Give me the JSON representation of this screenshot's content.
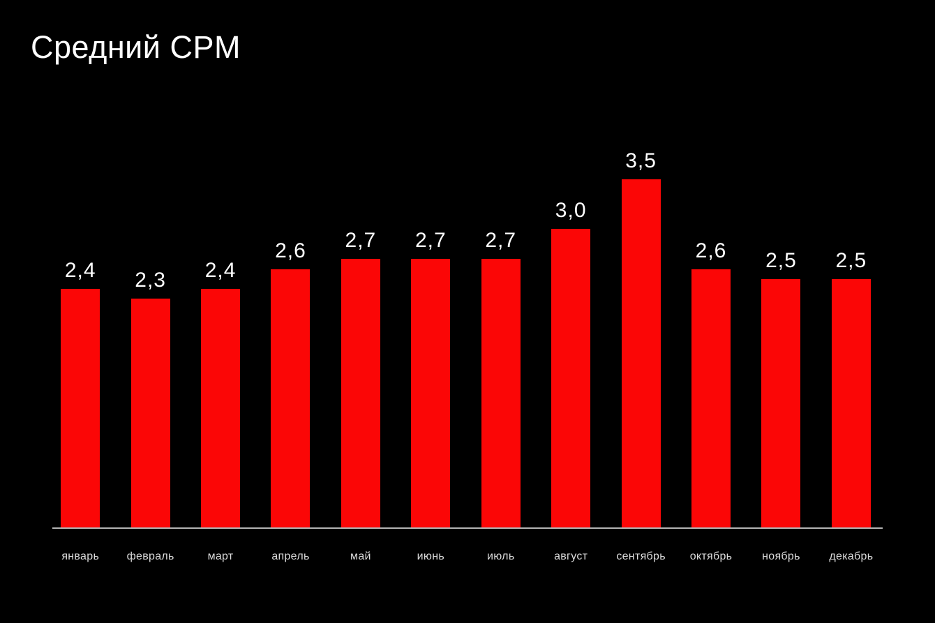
{
  "title": "Средний CPM",
  "colors": {
    "background": "#000000",
    "bar": "#fb0606",
    "title": "#ffffff",
    "value_label": "#ffffff",
    "month_label": "#dcdcdc",
    "axis_line": "#b5b5b5"
  },
  "chart_data": {
    "type": "bar",
    "title": "Средний CPM",
    "categories": [
      "январь",
      "февраль",
      "март",
      "апрель",
      "май",
      "июнь",
      "июль",
      "август",
      "сентябрь",
      "октябрь",
      "ноябрь",
      "декабрь"
    ],
    "values": [
      2.4,
      2.3,
      2.4,
      2.6,
      2.7,
      2.7,
      2.7,
      3.0,
      3.5,
      2.6,
      2.5,
      2.5
    ],
    "value_labels": [
      "2,4",
      "2,3",
      "2,4",
      "2,6",
      "2,7",
      "2,7",
      "2,7",
      "3,0",
      "3,5",
      "2,6",
      "2,5",
      "2,5"
    ],
    "xlabel": "",
    "ylabel": "",
    "ylim": [
      0,
      3.5
    ],
    "grid": false,
    "legend": false,
    "bar_labels_position": "above",
    "decimal_separator": ","
  }
}
